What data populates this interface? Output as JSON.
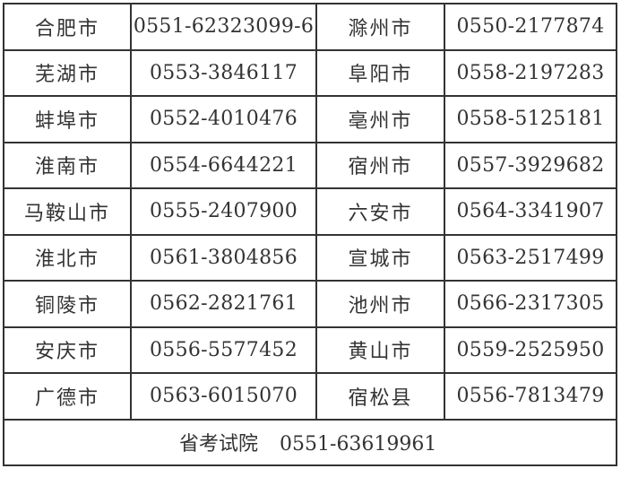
{
  "rows": [
    {
      "city1": "合肥市",
      "phone1": "0551-62323099-6",
      "city2": "滁州市",
      "phone2": "0550-2177874"
    },
    {
      "city1": "芜湖市",
      "phone1": "0553-3846117",
      "city2": "阜阳市",
      "phone2": "0558-2197283"
    },
    {
      "city1": "蚌埠市",
      "phone1": "0552-4010476",
      "city2": "亳州市",
      "phone2": "0558-5125181"
    },
    {
      "city1": "淮南市",
      "phone1": "0554-6644221",
      "city2": "宿州市",
      "phone2": "0557-3929682"
    },
    {
      "city1": "马鞍山市",
      "phone1": "0555-2407900",
      "city2": "六安市",
      "phone2": "0564-3341907"
    },
    {
      "city1": "淮北市",
      "phone1": "0561-3804856",
      "city2": "宣城市",
      "phone2": "0563-2517499"
    },
    {
      "city1": "铜陵市",
      "phone1": "0562-2821761",
      "city2": "池州市",
      "phone2": "0566-2317305"
    },
    {
      "city1": "安庆市",
      "phone1": "0556-5577452",
      "city2": "黄山市",
      "phone2": "0559-2525950"
    },
    {
      "city1": "广德市",
      "phone1": "0563-6015070",
      "city2": "宿松县",
      "phone2": "0556-7813479"
    }
  ],
  "footer": {
    "label": "省考试院",
    "phone": "0551-63619961"
  }
}
